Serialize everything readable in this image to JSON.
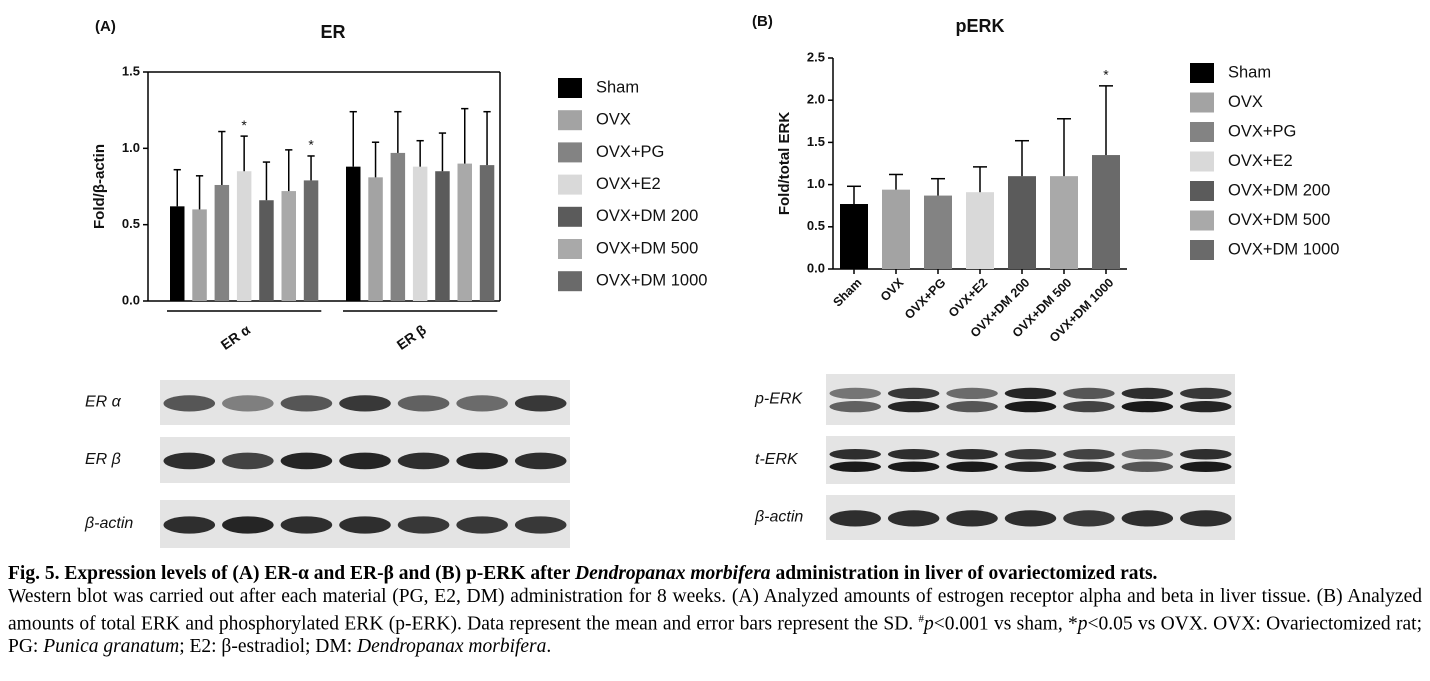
{
  "chart_data": [
    {
      "type": "bar",
      "panel": "(A)",
      "title": "ER",
      "y_label": "Fold/β-actin",
      "categories": [
        "ER α",
        "ER β"
      ],
      "ylim": [
        0,
        1.5
      ],
      "yticks": [
        {
          "value": 0,
          "label": "0.0"
        },
        0.5,
        {
          "value": 1,
          "label": "1.0"
        },
        1.5
      ],
      "series": [
        {
          "name": "Sham",
          "color": "#000000",
          "values": [
            0.62,
            0.88
          ],
          "errors": [
            0.24,
            0.36
          ]
        },
        {
          "name": "OVX",
          "color": "#a3a3a3",
          "values": [
            0.6,
            0.81
          ],
          "errors": [
            0.22,
            0.23
          ]
        },
        {
          "name": "OVX+PG",
          "color": "#838383",
          "values": [
            0.76,
            0.97
          ],
          "errors": [
            0.35,
            0.27
          ]
        },
        {
          "name": "OVX+E2",
          "color": "#d9d9d9",
          "values": [
            0.85,
            0.88
          ],
          "errors": [
            0.23,
            0.17
          ],
          "sig": [
            "*",
            null
          ]
        },
        {
          "name": "OVX+DM 200",
          "color": "#5b5b5b",
          "values": [
            0.66,
            0.85
          ],
          "errors": [
            0.25,
            0.25
          ]
        },
        {
          "name": "OVX+DM 500",
          "color": "#a9a9a9",
          "values": [
            0.72,
            0.9
          ],
          "errors": [
            0.27,
            0.36
          ]
        },
        {
          "name": "OVX+DM 1000",
          "color": "#6a6a6a",
          "values": [
            0.79,
            0.89
          ],
          "errors": [
            0.16,
            0.35
          ],
          "sig": [
            "*",
            null
          ]
        }
      ]
    },
    {
      "type": "bar",
      "panel": "(B)",
      "title": "pERK",
      "y_label": "Fold/total ERK",
      "categories": [
        "Sham",
        "OVX",
        "OVX+PG",
        "OVX+E2",
        "OVX+DM 200",
        "OVX+DM 500",
        "OVX+DM 1000"
      ],
      "colors": [
        "#000000",
        "#a3a3a3",
        "#838383",
        "#d9d9d9",
        "#5b5b5b",
        "#a9a9a9",
        "#6a6a6a"
      ],
      "values": [
        0.77,
        0.94,
        0.87,
        0.91,
        1.1,
        1.1,
        1.35
      ],
      "errors": [
        0.21,
        0.18,
        0.2,
        0.3,
        0.42,
        0.68,
        0.82
      ],
      "sig": [
        null,
        null,
        null,
        null,
        null,
        null,
        "*"
      ],
      "ylim": [
        0,
        2.5
      ],
      "yticks": [
        {
          "value": 0,
          "label": "0.0"
        },
        0.5,
        {
          "value": 1,
          "label": "1.0"
        },
        1.5,
        {
          "value": 2,
          "label": "2.0"
        },
        2.5
      ]
    }
  ],
  "blots": {
    "a_rows": [
      "ER α",
      "ER β",
      "β-actin"
    ],
    "b_rows": [
      "p-ERK",
      "t-ERK",
      "β-actin"
    ]
  },
  "caption": {
    "title": [
      "Fig. 5. Expression levels of (A) ER-α and ER-β and (B) p-ERK after ",
      "Dendropanax morbifera",
      " administration in liver of ovariectomized rats."
    ],
    "body": [
      "Western blot was carried out after each material (PG, E2, DM) administration for 8 weeks. (A) Analyzed amounts of estrogen receptor alpha and beta in liver tissue. (B) Analyzed amounts of total ERK and phosphorylated ERK (p-ERK). Data represent the mean and error bars represent the SD. ",
      "#",
      "p",
      "<0.001 vs sham, *",
      "p",
      "<0.05 vs OVX. OVX: Ovariectomized rat; PG: ",
      "Punica granatum",
      "; E2: β-estradiol; DM: ",
      "Dendropanax morbifera",
      "."
    ]
  }
}
